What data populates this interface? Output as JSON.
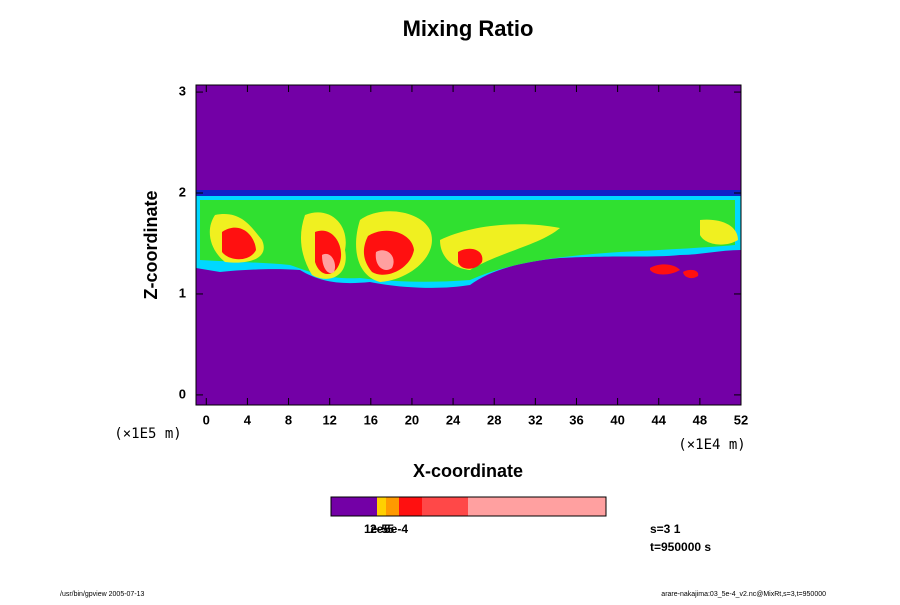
{
  "chart_data": {
    "type": "contour",
    "title": "Mixing Ratio",
    "xlabel": "X-coordinate",
    "ylabel": "Z-coordinate",
    "x_unit": "(×1E4 m)",
    "y_unit": "(×1E5 m)",
    "xlim": [
      -1,
      52
    ],
    "xticks": [
      0,
      4,
      8,
      12,
      16,
      20,
      24,
      28,
      32,
      36,
      40,
      44,
      48,
      52
    ],
    "ylim": [
      -0.1,
      3.07
    ],
    "yticks": [
      0,
      1,
      2,
      3
    ],
    "colorbar": {
      "colors": [
        "#7300a6",
        "#ffd000",
        "#ff9a00",
        "#ff1010",
        "#ff4848",
        "#ffa0a0"
      ],
      "labels": [
        "1e-5",
        "2e-5",
        "5e-4"
      ]
    },
    "annotations": [
      "s=3 1",
      "t=950000 s"
    ],
    "footer_left": "/usr/bin/gpview 2005-07-13",
    "footer_right": "arare-nakajima:03_5e-4_v2.nc@MixRt,s=3,t=950000"
  }
}
